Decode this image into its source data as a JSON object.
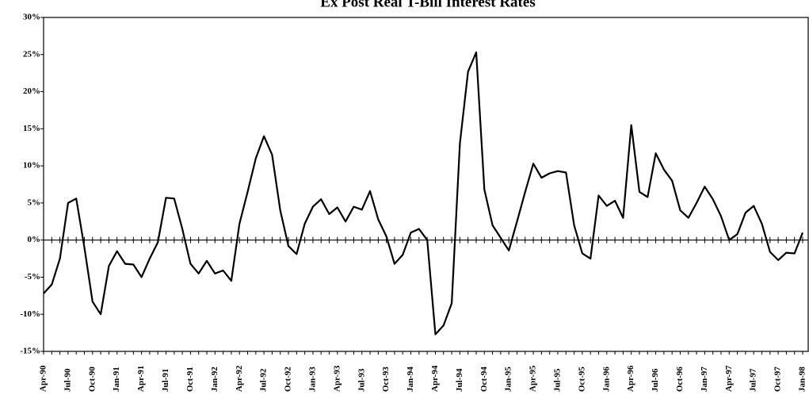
{
  "chart_data": {
    "type": "line",
    "title": "Ex Post Real T-Bill Interest Rates",
    "categories": [
      "Apr-90",
      null,
      null,
      "Jul-90",
      null,
      null,
      "Oct-90",
      null,
      null,
      "Jan-91",
      null,
      null,
      "Apr-91",
      null,
      null,
      "Jul-91",
      null,
      null,
      "Oct-91",
      null,
      null,
      "Jan-92",
      null,
      null,
      "Apr-92",
      null,
      null,
      "Jul-92",
      null,
      null,
      "Oct-92",
      null,
      null,
      "Jan-93",
      null,
      null,
      "Apr-93",
      null,
      null,
      "Jul-93",
      null,
      null,
      "Oct-93",
      null,
      null,
      "Jan-94",
      null,
      null,
      "Apr-94",
      null,
      null,
      "Jul-94",
      null,
      null,
      "Oct-94",
      null,
      null,
      "Jan-95",
      null,
      null,
      "Apr-95",
      null,
      null,
      "Jul-95",
      null,
      null,
      "Oct-95",
      null,
      null,
      "Jan-96",
      null,
      null,
      "Apr-96",
      null,
      null,
      "Jul-96",
      null,
      null,
      "Oct-96",
      null,
      null,
      "Jan-97",
      null,
      null,
      "Apr-97",
      null,
      null,
      "Jul-97",
      null,
      null,
      "Oct-97",
      null,
      null,
      "Jan-98"
    ],
    "series": [
      {
        "color": "#000000",
        "values": [
          -7.2,
          -6,
          -2.5,
          5,
          5.6,
          -1,
          -8.3,
          -10,
          -3.5,
          -1.5,
          -3.2,
          -3.3,
          -5,
          -2.5,
          -0.3,
          5.7,
          5.6,
          1.5,
          -3.2,
          -4.5,
          -2.8,
          -4.5,
          -4.1,
          -5.5,
          2.2,
          6.5,
          11,
          14,
          11.5,
          4,
          -0.8,
          -1.9,
          2.2,
          4.5,
          5.5,
          3.5,
          4.4,
          2.5,
          4.5,
          4.1,
          6.6,
          2.8,
          0.5,
          -3.2,
          -2,
          1,
          1.5,
          0,
          -12.7,
          -11.5,
          -8.5,
          13,
          22.7,
          25.3,
          6.8,
          2,
          0.3,
          -1.4,
          2.5,
          6.5,
          10.3,
          8.4,
          9,
          9.3,
          9.1,
          2,
          -1.8,
          -2.5,
          6,
          4.6,
          5.3,
          3,
          15.5,
          6.5,
          5.8,
          11.7,
          9.5,
          8,
          4,
          3,
          5,
          7.2,
          5.5,
          3.2,
          0,
          0.8,
          3.7,
          4.6,
          2.2,
          -1.6,
          -2.7,
          -1.7,
          -1.8,
          1
        ]
      }
    ],
    "ylim": [
      -15,
      30
    ],
    "yticks": [
      {
        "value": -15,
        "label": "-15%"
      },
      {
        "value": -10,
        "label": "-10%"
      },
      {
        "value": -5,
        "label": "-5%"
      },
      {
        "value": 0,
        "label": "0%"
      },
      {
        "value": 5,
        "label": "5%"
      },
      {
        "value": 10,
        "label": "10%"
      },
      {
        "value": 15,
        "label": "15%"
      },
      {
        "value": 20,
        "label": "20%"
      },
      {
        "value": 25,
        "label": "25%"
      },
      {
        "value": 30,
        "label": "30%"
      }
    ],
    "grid": false
  }
}
